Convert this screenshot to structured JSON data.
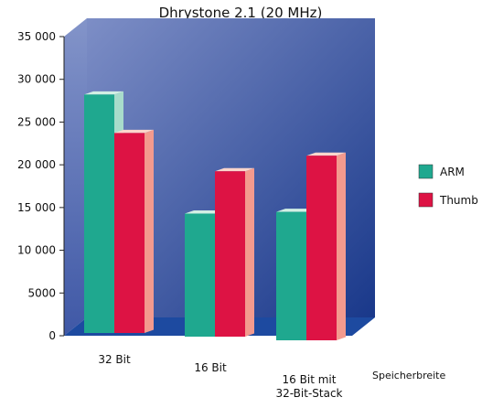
{
  "chart_data": {
    "type": "bar",
    "title": "Dhrystone 2.1 (20 MHz)",
    "xlabel": "Speicherbreite",
    "ylabel": "",
    "ylim": [
      0,
      35000
    ],
    "yticks": [
      {
        "value": 0,
        "label": "0"
      },
      {
        "value": 5000,
        "label": "5000"
      },
      {
        "value": 10000,
        "label": "10 000"
      },
      {
        "value": 15000,
        "label": "15 000"
      },
      {
        "value": 20000,
        "label": "20 000"
      },
      {
        "value": 25000,
        "label": "25 000"
      },
      {
        "value": 30000,
        "label": "30 000"
      },
      {
        "value": 35000,
        "label": "35 000"
      }
    ],
    "categories": [
      [
        "32 Bit"
      ],
      [
        "16 Bit"
      ],
      [
        "16 Bit mit",
        "32-Bit-Stack"
      ]
    ],
    "series": [
      {
        "name": "ARM",
        "values": [
          31000,
          16000,
          16700
        ],
        "color": "#1fa88f",
        "side_color": "#a8dccb",
        "top_color": "#d2efe4"
      },
      {
        "name": "Thumb",
        "values": [
          26000,
          21500,
          24000
        ],
        "color": "#dd1344",
        "side_color": "#f39a8e",
        "top_color": "#fbd6cc"
      }
    ],
    "legend_position": "right",
    "grid": false,
    "colors": {
      "wall_dark": "#1a3a88",
      "wall_light": "#6d7fbc",
      "floor": "#1d4aa0"
    }
  }
}
